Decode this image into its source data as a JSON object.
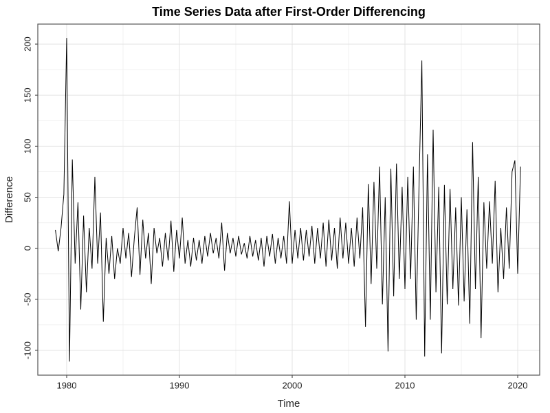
{
  "chart_data": {
    "type": "line",
    "title": "Time Series Data after First-Order Differencing",
    "x_label": "Time",
    "y_label": "Difference",
    "x": [
      1979,
      1979.25,
      1979.5,
      1979.75,
      1980,
      1980.25,
      1980.5,
      1980.75,
      1981,
      1981.25,
      1981.5,
      1981.75,
      1982,
      1982.25,
      1982.5,
      1982.75,
      1983,
      1983.25,
      1983.5,
      1983.75,
      1984,
      1984.25,
      1984.5,
      1984.75,
      1985,
      1985.25,
      1985.5,
      1985.75,
      1986,
      1986.25,
      1986.5,
      1986.75,
      1987,
      1987.25,
      1987.5,
      1987.75,
      1988,
      1988.25,
      1988.5,
      1988.75,
      1989,
      1989.25,
      1989.5,
      1989.75,
      1990,
      1990.25,
      1990.5,
      1990.75,
      1991,
      1991.25,
      1991.5,
      1991.75,
      1992,
      1992.25,
      1992.5,
      1992.75,
      1993,
      1993.25,
      1993.5,
      1993.75,
      1994,
      1994.25,
      1994.5,
      1994.75,
      1995,
      1995.25,
      1995.5,
      1995.75,
      1996,
      1996.25,
      1996.5,
      1996.75,
      1997,
      1997.25,
      1997.5,
      1997.75,
      1998,
      1998.25,
      1998.5,
      1998.75,
      1999,
      1999.25,
      1999.5,
      1999.75,
      2000,
      2000.25,
      2000.5,
      2000.75,
      2001,
      2001.25,
      2001.5,
      2001.75,
      2002,
      2002.25,
      2002.5,
      2002.75,
      2003,
      2003.25,
      2003.5,
      2003.75,
      2004,
      2004.25,
      2004.5,
      2004.75,
      2005,
      2005.25,
      2005.5,
      2005.75,
      2006,
      2006.25,
      2006.5,
      2006.75,
      2007,
      2007.25,
      2007.5,
      2007.75,
      2008,
      2008.25,
      2008.5,
      2008.75,
      2009,
      2009.25,
      2009.5,
      2009.75,
      2010,
      2010.25,
      2010.5,
      2010.75,
      2011,
      2011.25,
      2011.5,
      2011.75,
      2012,
      2012.25,
      2012.5,
      2012.75,
      2013,
      2013.25,
      2013.5,
      2013.75,
      2014,
      2014.25,
      2014.5,
      2014.75,
      2015,
      2015.25,
      2015.5,
      2015.75,
      2016,
      2016.25,
      2016.5,
      2016.75,
      2017,
      2017.25,
      2017.5,
      2017.75,
      2018,
      2018.25,
      2018.5,
      2018.75,
      2019,
      2019.25,
      2019.5,
      2019.75,
      2020,
      2020.25
    ],
    "series": [
      {
        "name": "Difference",
        "color": "#000000",
        "values": [
          18,
          -3,
          20,
          53,
          206,
          -111,
          87,
          -15,
          45,
          -60,
          32,
          -43,
          20,
          -20,
          70,
          -15,
          35,
          -72,
          10,
          -25,
          12,
          -30,
          0,
          -15,
          20,
          -10,
          15,
          -28,
          10,
          40,
          -26,
          28,
          -10,
          15,
          -35,
          20,
          -5,
          10,
          -18,
          15,
          -12,
          27,
          -23,
          18,
          -10,
          30,
          -15,
          8,
          -18,
          10,
          -12,
          8,
          -15,
          12,
          -8,
          15,
          -5,
          10,
          -10,
          25,
          -22,
          15,
          -5,
          10,
          -8,
          12,
          -6,
          5,
          -10,
          12,
          -8,
          8,
          -12,
          10,
          -18,
          12,
          -8,
          14,
          -15,
          10,
          -10,
          12,
          -15,
          46,
          -15,
          18,
          -10,
          20,
          -12,
          18,
          -8,
          22,
          -15,
          20,
          -10,
          25,
          -18,
          28,
          -12,
          20,
          -20,
          30,
          -10,
          25,
          -15,
          20,
          -18,
          30,
          -10,
          40,
          -77,
          63,
          -35,
          65,
          -20,
          80,
          -55,
          50,
          -101,
          78,
          -47,
          83,
          -30,
          60,
          -40,
          70,
          -30,
          80,
          -70,
          62,
          184,
          -106,
          92,
          -70,
          116,
          -43,
          60,
          -103,
          62,
          -55,
          58,
          -40,
          40,
          -56,
          50,
          -52,
          38,
          -74,
          104,
          -40,
          70,
          -88,
          45,
          -20,
          46,
          -15,
          66,
          -43,
          20,
          -30,
          40,
          -20,
          75,
          86,
          -25,
          80
        ]
      }
    ],
    "xlim": [
      1977.44,
      2021.95
    ],
    "xticks": [
      1980,
      1990,
      2000,
      2010,
      2020
    ],
    "xminorticks": [
      1985,
      1995,
      2005,
      2015
    ],
    "ylim": [
      -124.3,
      219.6
    ],
    "yticks": [
      -100,
      -50,
      0,
      50,
      100,
      150,
      200
    ],
    "yminorticks": [
      -75,
      -25,
      25,
      75,
      125,
      175
    ],
    "grid": true
  }
}
